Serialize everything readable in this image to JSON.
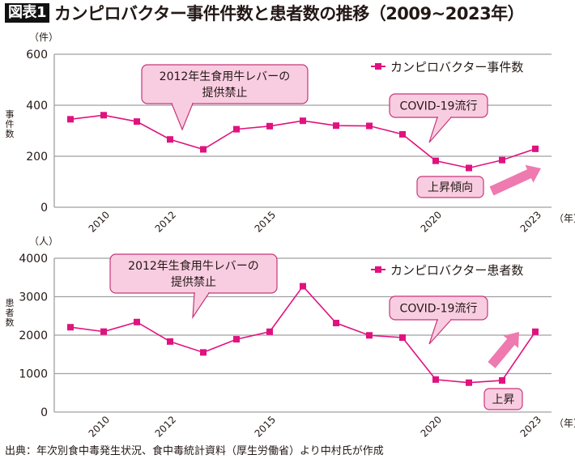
{
  "header": {
    "badge": "図表1",
    "title": "カンピロバクター事件件数と患者数の推移（2009~2023年）"
  },
  "footer": {
    "source": "出典：年次別食中毒発生状況、食中毒統計資料（厚生労働省）より中村氏が作成"
  },
  "colors": {
    "series": "#e0127f",
    "callout_fill": "#f9cde1",
    "callout_border": "#c8357a",
    "arrow": "#ee7ab0",
    "grid": "#a0a0a0"
  },
  "chart_data": [
    {
      "type": "line",
      "title": "",
      "unit_label": "（件）",
      "ylabel": "事件数",
      "xlabel_unit": "（年）",
      "x": [
        2009,
        2010,
        2011,
        2012,
        2013,
        2014,
        2015,
        2016,
        2017,
        2018,
        2019,
        2020,
        2021,
        2022,
        2023
      ],
      "xtick_labels": [
        "2010",
        "2012",
        "2015",
        "2020",
        "2023"
      ],
      "ylim": [
        0,
        600
      ],
      "yticks": [
        "0",
        "200",
        "400",
        "600"
      ],
      "grid": true,
      "legend_position": "top-right",
      "series": [
        {
          "name": "カンピロバクター事件数",
          "values": [
            345,
            361,
            336,
            266,
            227,
            306,
            318,
            339,
            320,
            319,
            286,
            182,
            154,
            185,
            229
          ]
        }
      ],
      "annotations": [
        {
          "text": [
            "2012年生食用牛レバーの",
            "提供禁止"
          ],
          "kind": "callout"
        },
        {
          "text": [
            "COVID-19流行"
          ],
          "kind": "callout"
        },
        {
          "text": [
            "上昇傾向"
          ],
          "kind": "label"
        }
      ]
    },
    {
      "type": "line",
      "title": "",
      "unit_label": "（人）",
      "ylabel": "患者数",
      "xlabel_unit": "（年）",
      "x": [
        2009,
        2010,
        2011,
        2012,
        2013,
        2014,
        2015,
        2016,
        2017,
        2018,
        2019,
        2020,
        2021,
        2022,
        2023
      ],
      "xtick_labels": [
        "2010",
        "2012",
        "2015",
        "2020",
        "2023"
      ],
      "ylim": [
        0,
        4000
      ],
      "yticks": [
        "0",
        "1000",
        "2000",
        "3000",
        "4000"
      ],
      "grid": true,
      "legend_position": "top-right",
      "series": [
        {
          "name": "カンピロバクター患者数",
          "values": [
            2206,
            2092,
            2341,
            1834,
            1551,
            1893,
            2089,
            3272,
            2315,
            1995,
            1937,
            845,
            764,
            822,
            2089
          ]
        }
      ],
      "annotations": [
        {
          "text": [
            "2012年生食用牛レバーの",
            "提供禁止"
          ],
          "kind": "callout"
        },
        {
          "text": [
            "COVID-19流行"
          ],
          "kind": "callout"
        },
        {
          "text": [
            "上昇"
          ],
          "kind": "label"
        }
      ]
    }
  ]
}
